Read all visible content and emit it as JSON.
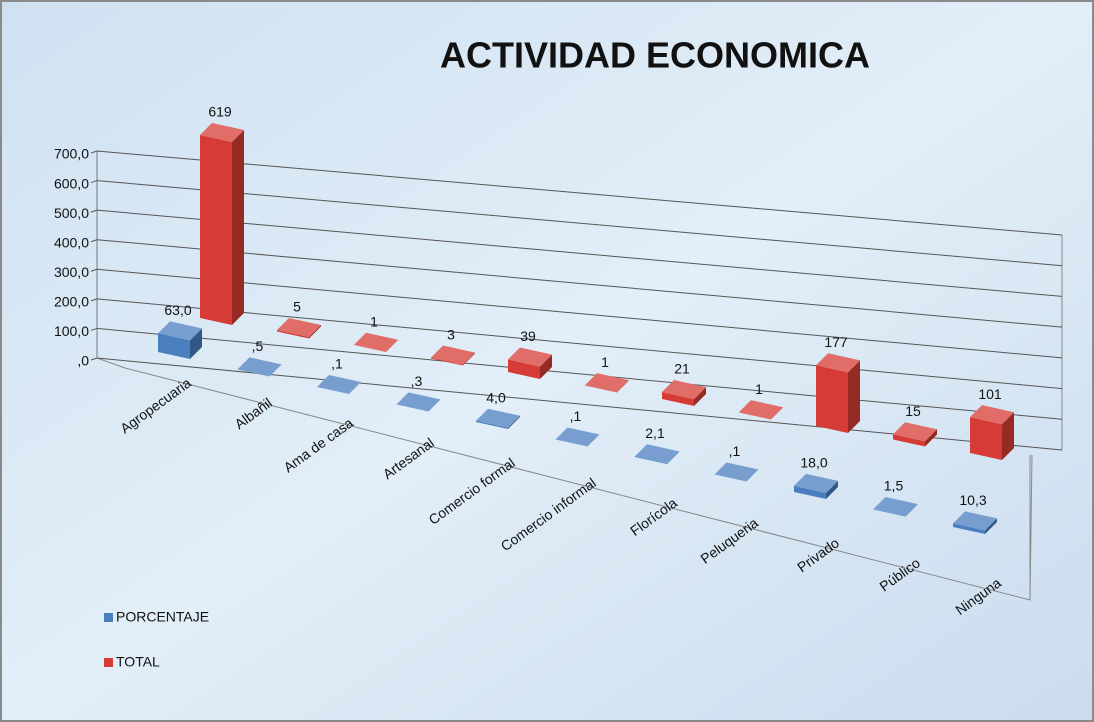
{
  "chart_data": {
    "type": "bar3d",
    "title": "ACTIVIDAD  ECONOMICA",
    "categories": [
      "Agropecuaria",
      "Albañil",
      "Ama de casa",
      "Artesanal",
      "Comercio formal",
      "Comercio informal",
      "Florícola",
      "Peluqueria",
      "Privado",
      "Público",
      "Ninguna"
    ],
    "series": [
      {
        "name": "PORCENTAJE",
        "color": "#4a7ebf",
        "values": [
          63.0,
          0.5,
          0.1,
          0.3,
          4.0,
          0.1,
          2.1,
          0.1,
          18.0,
          1.5,
          10.3
        ],
        "value_labels": [
          "63,0",
          ",5",
          ",1",
          ",3",
          "4,0",
          ",1",
          "2,1",
          ",1",
          "18,0",
          "1,5",
          "10,3"
        ]
      },
      {
        "name": "TOTAL",
        "color": "#d63c35",
        "values": [
          619,
          5,
          1,
          3,
          39,
          1,
          21,
          1,
          177,
          15,
          101
        ]
      }
    ],
    "ylim": [
      0,
      700
    ],
    "yticks": [
      {
        "value": 0,
        "label": ",0"
      },
      {
        "value": 100,
        "label": "100,0"
      },
      {
        "value": 200,
        "label": "200,0"
      },
      {
        "value": 300,
        "label": "300,0"
      },
      {
        "value": 400,
        "label": "400,0"
      },
      {
        "value": 500,
        "label": "500,0"
      },
      {
        "value": 600,
        "label": "600,0"
      },
      {
        "value": 700,
        "label": "700,0"
      }
    ],
    "grid": true
  }
}
